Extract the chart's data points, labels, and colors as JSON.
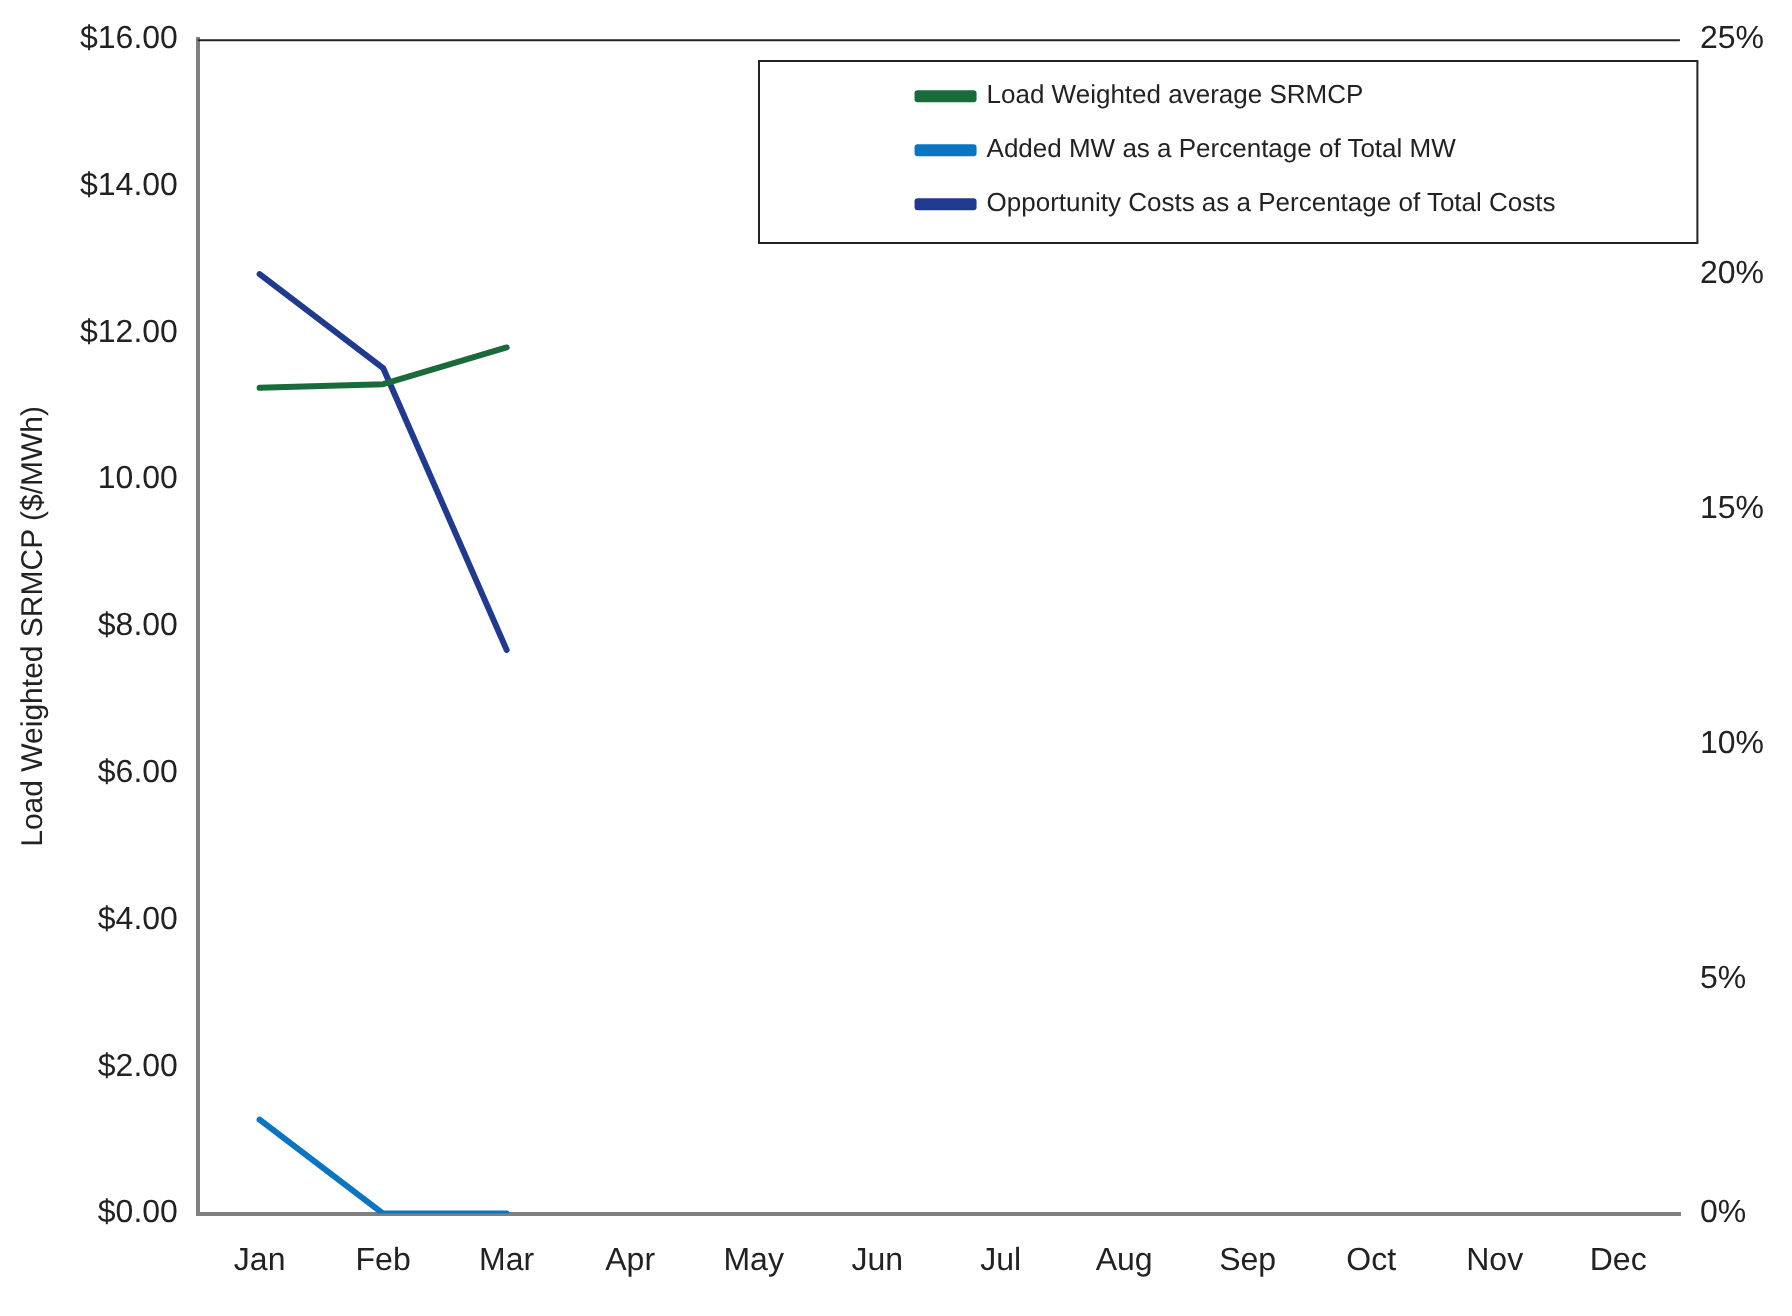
{
  "chart_data": {
    "type": "line",
    "ylabel": "Load Weighted SRMCP ($/MWh)",
    "categories": [
      "Jan",
      "Feb",
      "Mar",
      "Apr",
      "May",
      "Jun",
      "Jul",
      "Aug",
      "Sep",
      "Oct",
      "Nov",
      "Dec"
    ],
    "ylim": [
      0,
      16
    ],
    "yticks": [
      {
        "value": 0,
        "label": "$0.00"
      },
      {
        "value": 2,
        "label": "$2.00"
      },
      {
        "value": 4,
        "label": "$4.00"
      },
      {
        "value": 6,
        "label": "$6.00"
      },
      {
        "value": 8,
        "label": "$8.00"
      },
      {
        "value": 10,
        "label": "10.00"
      },
      {
        "value": 12,
        "label": "$12.00"
      },
      {
        "value": 14,
        "label": "$14.00"
      },
      {
        "value": 16,
        "label": "$16.00"
      }
    ],
    "y2lim": [
      0,
      25
    ],
    "y2ticks": [
      {
        "value": 0,
        "label": "0%"
      },
      {
        "value": 5,
        "label": "5%"
      },
      {
        "value": 10,
        "label": "10%"
      },
      {
        "value": 15,
        "label": "15%"
      },
      {
        "value": 20,
        "label": "20%"
      },
      {
        "value": 25,
        "label": "25%"
      }
    ],
    "series": [
      {
        "name": "Load Weighted average SRMCP",
        "color": "#1a6b3a",
        "values": [
          11.25,
          11.3,
          11.8,
          null,
          null,
          null,
          null,
          null,
          null,
          null,
          null,
          null
        ]
      },
      {
        "name": "Added MW as a Percentage of Total MW",
        "color": "#0a75c2",
        "axis": "y2",
        "values": [
          2.0,
          0,
          0,
          null,
          null,
          null,
          null,
          null,
          null,
          null,
          null,
          null
        ]
      },
      {
        "name": "Opportunity Costs as a Percentage of Total Costs",
        "color": "#1f3a8f",
        "axis": "y2",
        "values": [
          20.0,
          18.0,
          12.0,
          null,
          null,
          null,
          null,
          null,
          null,
          null,
          null,
          null
        ]
      }
    ],
    "grid": false,
    "legend": "top right",
    "marker": "none",
    "line_style": "solid"
  }
}
